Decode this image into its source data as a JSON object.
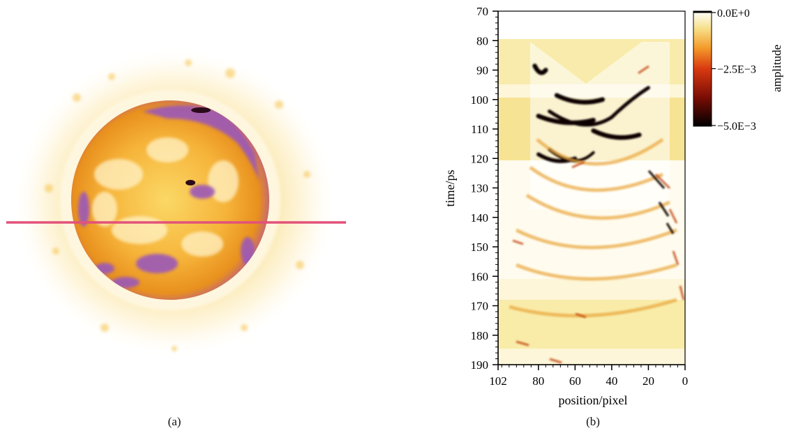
{
  "panels": {
    "a": {
      "caption": "(a)"
    },
    "b": {
      "caption": "(b)"
    }
  },
  "chart_data": [
    {
      "type": "image",
      "panel": "(a)",
      "description_visible": "false-color circular sample image with a horizontal pink cut line",
      "colors": {
        "line": "#e2527a",
        "ring": "#9b58b8",
        "fill": "#f0a020",
        "halo": "#fbe9a6"
      }
    },
    {
      "type": "heatmap",
      "panel": "(b)",
      "xlabel": "position/pixel",
      "ylabel": "time/ps",
      "xlim": [
        102,
        0
      ],
      "ylim": [
        190,
        70
      ],
      "x_ticks": [
        "102",
        "80",
        "60",
        "40",
        "20",
        "0"
      ],
      "y_ticks": [
        "70",
        "80",
        "90",
        "100",
        "110",
        "120",
        "130",
        "140",
        "150",
        "160",
        "170",
        "180",
        "190"
      ],
      "colorbar": {
        "label": "amplitude",
        "ticks": [
          "0.0E+0",
          "−2.5E−3",
          "−5.0E−3"
        ],
        "range": [
          -0.005,
          0
        ],
        "colors": [
          "#000000",
          "#7a0d05",
          "#d93a10",
          "#f39a2a",
          "#f7e08a",
          "#ffffff"
        ]
      },
      "features": [
        {
          "time_ps": 90,
          "x_from": 82,
          "x_to": 76,
          "amplitude": -0.005
        },
        {
          "time_ps": 100,
          "x_from": 70,
          "x_to": 45,
          "amplitude": -0.005
        },
        {
          "time_ps": 107,
          "x_from": 80,
          "x_to": 50,
          "amplitude": -0.005
        },
        {
          "time_ps": 112,
          "x_from": 50,
          "x_to": 25,
          "amplitude": -0.005
        },
        {
          "time_ps": 120,
          "x_from": 80,
          "x_to": 60,
          "amplitude": -0.004
        }
      ]
    }
  ]
}
